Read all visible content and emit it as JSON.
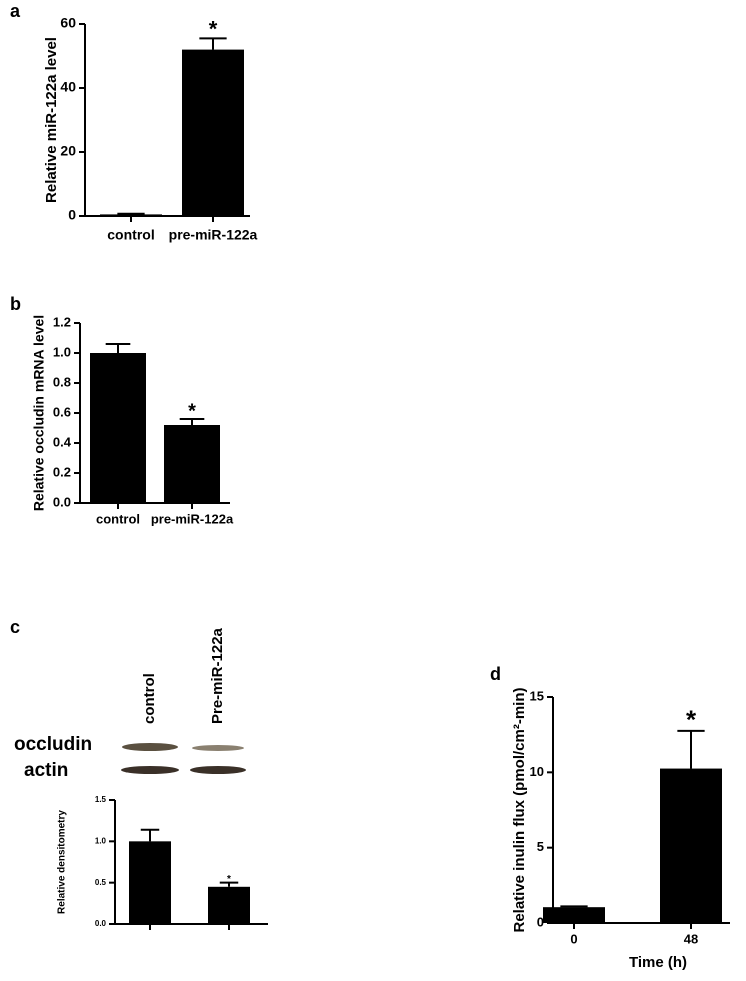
{
  "chart_data": [
    {
      "type": "bar",
      "panel": "a",
      "y_label": "Relative miR-122a level",
      "categories": [
        "control",
        "pre-miR-122a"
      ],
      "values": [
        0.5,
        52
      ],
      "errors": [
        0.2,
        3.5
      ],
      "significance": [
        null,
        "*"
      ],
      "color": "#000000",
      "ylim": [
        0,
        60
      ],
      "yticks": [
        0,
        20,
        40,
        60
      ]
    },
    {
      "type": "bar",
      "panel": "b",
      "y_label": "Relative occludin mRNA level",
      "categories": [
        "control",
        "pre-miR-122a"
      ],
      "values": [
        1.0,
        0.52
      ],
      "errors": [
        0.06,
        0.04
      ],
      "significance": [
        null,
        "*"
      ],
      "color": "#000000",
      "ylim": [
        0,
        1.2
      ],
      "yticks": [
        {
          "value": 0,
          "label": "0.0"
        },
        0.2,
        0.4,
        0.6,
        0.8,
        {
          "value": 1,
          "label": "1.0"
        },
        1.2
      ]
    },
    {
      "type": "bar",
      "panel": "c",
      "y_label": "Relative densitometry",
      "categories": [
        "control",
        "Pre-miR-122a"
      ],
      "blot_rows": [
        "occludin",
        "actin"
      ],
      "values": [
        1.0,
        0.45
      ],
      "errors": [
        0.14,
        0.05
      ],
      "significance": [
        null,
        "*"
      ],
      "color": "#000000",
      "ylim": [
        0,
        1.5
      ],
      "yticks": [
        {
          "value": 0,
          "label": "0.0"
        },
        0.5,
        {
          "value": 1,
          "label": "1.0"
        },
        1.5
      ]
    },
    {
      "type": "bar",
      "panel": "d",
      "y_label": "Relative inulin flux (pmol/cm²-min)",
      "x_label": "Time (h)",
      "categories": [
        "0",
        "48"
      ],
      "values": [
        1.05,
        10.25
      ],
      "errors": [
        0.05,
        2.5
      ],
      "significance": [
        null,
        "*"
      ],
      "color": "#000000",
      "ylim": [
        0,
        15
      ],
      "yticks": [
        0,
        5,
        10,
        15
      ]
    }
  ]
}
